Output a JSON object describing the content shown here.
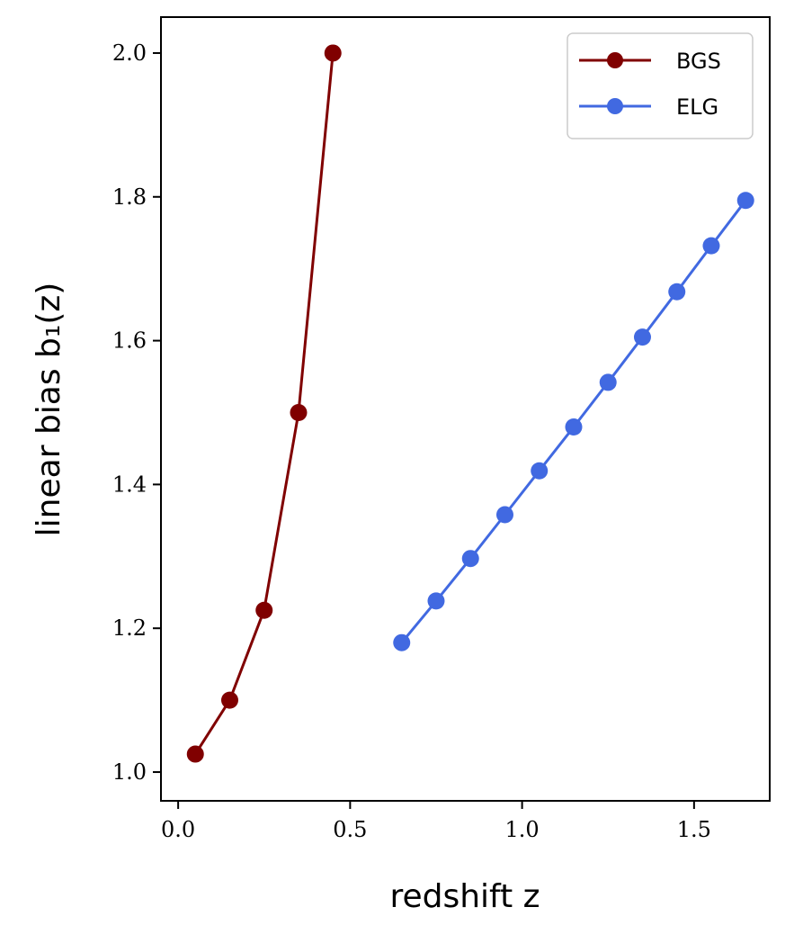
{
  "chart_data": {
    "type": "line",
    "xlabel": "redshift z",
    "ylabel": "linear bias b₁(z)",
    "xlim": [
      -0.05,
      1.72
    ],
    "ylim": [
      0.96,
      2.05
    ],
    "xticks": [
      {
        "value": 0.0,
        "label": "0.0"
      },
      {
        "value": 0.5,
        "label": "0.5"
      },
      {
        "value": 1.0,
        "label": "1.0"
      },
      {
        "value": 1.5,
        "label": "1.5"
      }
    ],
    "yticks": [
      {
        "value": 1.0,
        "label": "1.0"
      },
      {
        "value": 1.2,
        "label": "1.2"
      },
      {
        "value": 1.4,
        "label": "1.4"
      },
      {
        "value": 1.6,
        "label": "1.6"
      },
      {
        "value": 1.8,
        "label": "1.8"
      },
      {
        "value": 2.0,
        "label": "2.0"
      }
    ],
    "grid": false,
    "legend_position": "top-right",
    "series": [
      {
        "name": "BGS",
        "color": "#800000",
        "marker": "circle",
        "x": [
          0.05,
          0.15,
          0.25,
          0.35,
          0.45
        ],
        "y": [
          1.025,
          1.1,
          1.225,
          1.5,
          2.0
        ]
      },
      {
        "name": "ELG",
        "color": "#4169e1",
        "marker": "circle",
        "x": [
          0.65,
          0.75,
          0.85,
          0.95,
          1.05,
          1.15,
          1.25,
          1.35,
          1.45,
          1.55,
          1.65
        ],
        "y": [
          1.18,
          1.238,
          1.297,
          1.358,
          1.419,
          1.48,
          1.542,
          1.605,
          1.668,
          1.732,
          1.795
        ]
      }
    ]
  }
}
